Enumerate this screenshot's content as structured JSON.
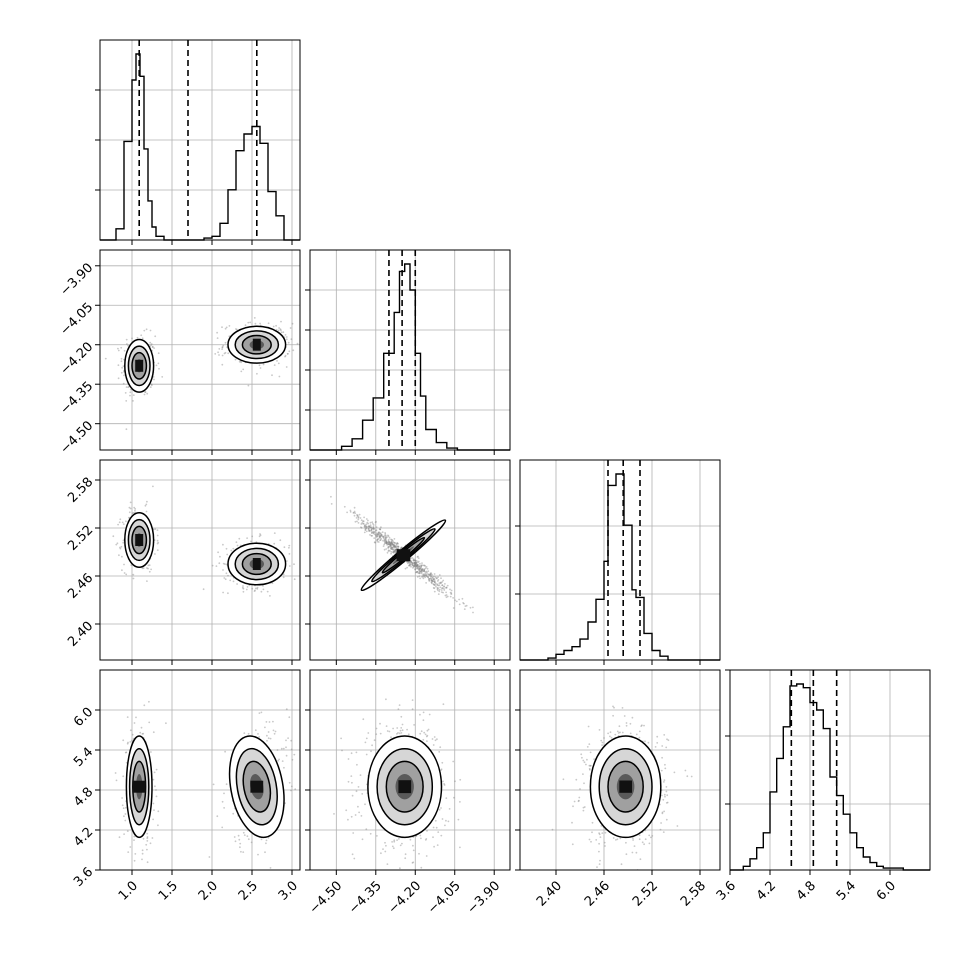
{
  "chart_data": {
    "type": "corner",
    "grid": true,
    "line_color": "#000000",
    "scatter_color": "#888888",
    "params": [
      {
        "range": [
          0.6,
          3.1
        ],
        "ticks": [
          1.0,
          1.5,
          2.0,
          2.5,
          3.0
        ],
        "tick_labels": [
          "1.0",
          "1.5",
          "2.0",
          "2.5",
          "3.0"
        ],
        "quantiles": [
          1.09,
          1.7,
          2.56
        ]
      },
      {
        "range": [
          -4.6,
          -3.84
        ],
        "ticks": [
          -4.5,
          -4.35,
          -4.2,
          -4.05,
          -3.9
        ],
        "tick_labels": [
          "−4.50",
          "−4.35",
          "−4.20",
          "−4.05",
          "−3.90"
        ],
        "quantiles": [
          -4.3,
          -4.25,
          -4.2
        ]
      },
      {
        "range": [
          2.355,
          2.605
        ],
        "ticks": [
          2.4,
          2.46,
          2.52,
          2.58
        ],
        "tick_labels": [
          "2.40",
          "2.46",
          "2.52",
          "2.58"
        ],
        "quantiles": [
          2.465,
          2.484,
          2.505
        ]
      },
      {
        "range": [
          3.6,
          6.6
        ],
        "ticks": [
          3.6,
          4.2,
          4.8,
          5.4,
          6.0
        ],
        "tick_labels": [
          "3.6",
          "4.2",
          "4.8",
          "5.4",
          "6.0"
        ],
        "quantiles": [
          4.52,
          4.85,
          5.2
        ]
      }
    ],
    "diagonal_histograms": [
      {
        "bins": [
          0.6,
          0.7,
          0.8,
          0.9,
          1.0,
          1.05,
          1.1,
          1.15,
          1.2,
          1.25,
          1.3,
          1.4,
          1.5,
          1.6,
          1.7,
          1.8,
          1.9,
          2.0,
          2.1,
          2.2,
          2.3,
          2.4,
          2.5,
          2.6,
          2.7,
          2.8,
          2.9,
          3.0,
          3.1
        ],
        "counts": [
          0,
          0,
          0.06,
          0.53,
          0.86,
          1.0,
          0.88,
          0.49,
          0.21,
          0.07,
          0.02,
          0.0,
          0.0,
          0.0,
          0.0,
          0.0,
          0.01,
          0.02,
          0.09,
          0.27,
          0.48,
          0.57,
          0.61,
          0.52,
          0.26,
          0.13,
          0.0,
          0.0
        ],
        "yticks": [
          0.25,
          0.5,
          0.75
        ]
      },
      {
        "bins": [
          -4.6,
          -4.56,
          -4.52,
          -4.48,
          -4.44,
          -4.4,
          -4.36,
          -4.32,
          -4.28,
          -4.26,
          -4.24,
          -4.22,
          -4.2,
          -4.18,
          -4.16,
          -4.12,
          -4.08,
          -4.04,
          -4.0,
          -3.96,
          -3.92,
          -3.88,
          -3.84
        ],
        "counts": [
          0,
          0,
          0,
          0.02,
          0.06,
          0.16,
          0.28,
          0.52,
          0.74,
          0.96,
          1.0,
          0.86,
          0.52,
          0.29,
          0.11,
          0.04,
          0.01,
          0,
          0,
          0,
          0,
          0
        ],
        "yticks": [
          0.2,
          0.4,
          0.6,
          0.8
        ]
      },
      {
        "bins": [
          2.355,
          2.37,
          2.38,
          2.39,
          2.4,
          2.41,
          2.42,
          2.43,
          2.44,
          2.45,
          2.46,
          2.465,
          2.475,
          2.485,
          2.495,
          2.5,
          2.51,
          2.52,
          2.53,
          2.54,
          2.55,
          2.56,
          2.605
        ],
        "counts": [
          0,
          0,
          0,
          0.01,
          0.03,
          0.05,
          0.07,
          0.11,
          0.2,
          0.32,
          0.52,
          0.92,
          0.98,
          0.71,
          0.37,
          0.33,
          0.14,
          0.05,
          0.02,
          0,
          0,
          0
        ],
        "yticks": [
          0.33,
          0.67
        ]
      },
      {
        "bins": [
          3.6,
          3.8,
          3.9,
          4.0,
          4.1,
          4.2,
          4.3,
          4.4,
          4.5,
          4.6,
          4.7,
          4.8,
          4.9,
          5.0,
          5.1,
          5.2,
          5.3,
          5.4,
          5.5,
          5.6,
          5.7,
          5.8,
          5.9,
          6.0,
          6.2,
          6.6
        ],
        "counts": [
          0,
          0.02,
          0.06,
          0.12,
          0.2,
          0.42,
          0.6,
          0.77,
          0.99,
          1.0,
          0.98,
          0.9,
          0.86,
          0.76,
          0.5,
          0.4,
          0.3,
          0.2,
          0.12,
          0.07,
          0.04,
          0.02,
          0.01,
          0.01,
          0
        ],
        "yticks": [
          0.33,
          0.67,
          1.0
        ]
      }
    ],
    "joint_blobs": [
      {
        "row": 1,
        "col": 0,
        "blobs": [
          {
            "cx": 1.09,
            "cy": -4.28,
            "sx": 0.09,
            "sy": 0.05,
            "rho": 0.0,
            "w": 0.52
          },
          {
            "cx": 2.56,
            "cy": -4.2,
            "sx": 0.18,
            "sy": 0.035,
            "rho": 0.0,
            "w": 0.48
          }
        ]
      },
      {
        "row": 2,
        "col": 0,
        "blobs": [
          {
            "cx": 1.09,
            "cy": 2.505,
            "sx": 0.09,
            "sy": 0.017,
            "rho": 0.0,
            "w": 0.52
          },
          {
            "cx": 2.56,
            "cy": 2.475,
            "sx": 0.18,
            "sy": 0.013,
            "rho": 0.0,
            "w": 0.48
          }
        ]
      },
      {
        "row": 2,
        "col": 1,
        "blobs": [
          {
            "cx": -4.245,
            "cy": 2.486,
            "sx": 0.08,
            "sy": 0.022,
            "rho": -0.98,
            "w": 1.0
          }
        ]
      },
      {
        "row": 3,
        "col": 0,
        "blobs": [
          {
            "cx": 1.09,
            "cy": 4.85,
            "sx": 0.08,
            "sy": 0.38,
            "rho": 0.0,
            "w": 0.52
          },
          {
            "cx": 2.56,
            "cy": 4.85,
            "sx": 0.17,
            "sy": 0.38,
            "rho": 0.25,
            "w": 0.48
          }
        ]
      },
      {
        "row": 3,
        "col": 1,
        "blobs": [
          {
            "cx": -4.24,
            "cy": 4.85,
            "sx": 0.07,
            "sy": 0.38,
            "rho": 0.0,
            "w": 1.0
          }
        ]
      },
      {
        "row": 3,
        "col": 2,
        "blobs": [
          {
            "cx": 2.487,
            "cy": 4.85,
            "sx": 0.022,
            "sy": 0.38,
            "rho": 0.0,
            "w": 1.0
          }
        ]
      }
    ]
  }
}
